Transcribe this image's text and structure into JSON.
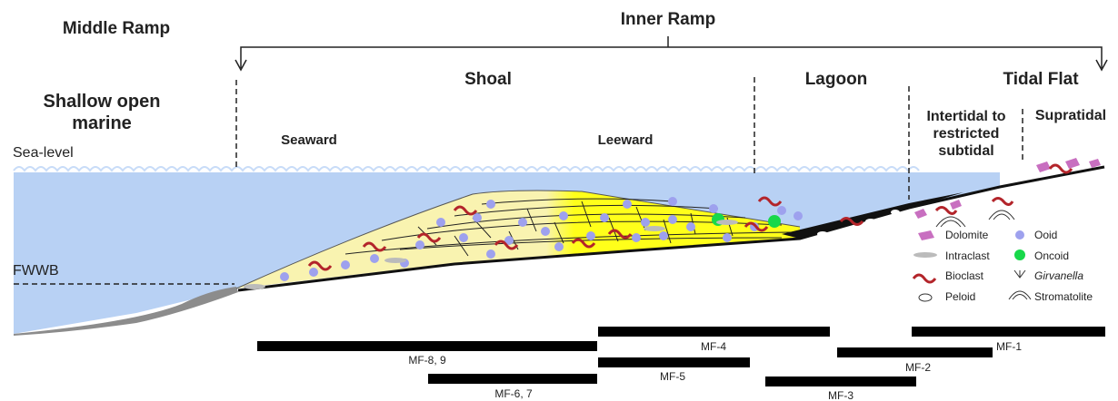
{
  "ramps": [
    "Middle Ramp",
    "Inner Ramp"
  ],
  "environments": [
    "Shallow open marine",
    "Shoal",
    "Lagoon",
    "Tidal Flat"
  ],
  "subenvironments": [
    "Seaward",
    "Leeward",
    "Intertidal to restricted subtidal",
    "Supratidal"
  ],
  "levels": [
    "Sea-level",
    "FWWB"
  ],
  "legend": [
    "Dolomite",
    "Ooid",
    "Intraclast",
    "Oncoid",
    "Bioclast",
    "Girvanella",
    "Peloid",
    "Stromatolite"
  ],
  "microfacies": [
    "MF-8, 9",
    "MF-6, 7",
    "MF-4",
    "MF-5",
    "MF-3",
    "MF-2",
    "MF-1"
  ]
}
